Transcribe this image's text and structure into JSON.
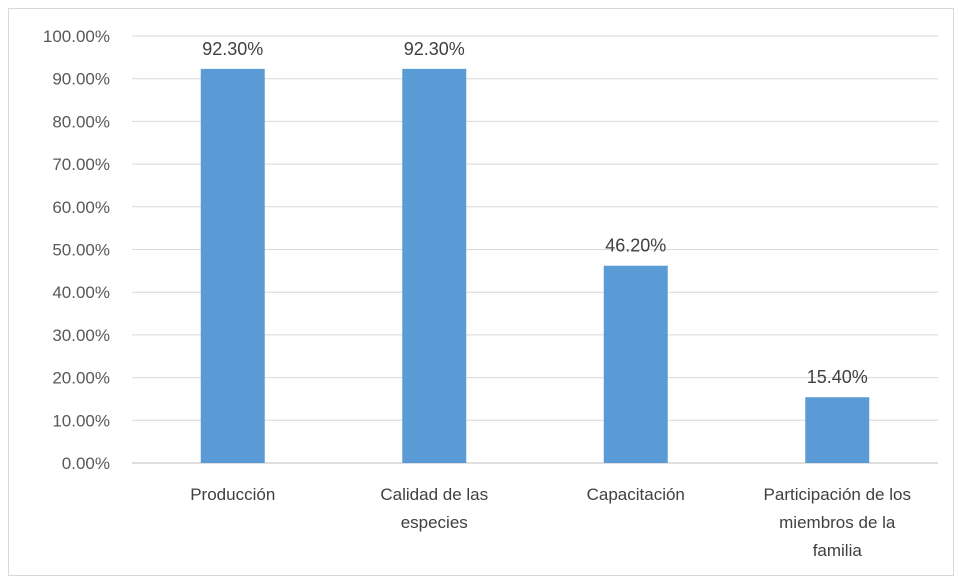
{
  "chart_data": {
    "type": "bar",
    "categories": [
      [
        "Producción"
      ],
      [
        "Calidad de las",
        "especies"
      ],
      [
        "Capacitación"
      ],
      [
        "Participación de los",
        "miembros de la",
        "familia"
      ]
    ],
    "values": [
      92.3,
      92.3,
      46.2,
      15.4
    ],
    "data_labels": [
      "92.30%",
      "92.30%",
      "46.20%",
      "15.40%"
    ],
    "ylim": [
      0,
      100
    ],
    "yticks": [
      0,
      10,
      20,
      30,
      40,
      50,
      60,
      70,
      80,
      90,
      100
    ],
    "ytick_labels": [
      "0.00%",
      "10.00%",
      "20.00%",
      "30.00%",
      "40.00%",
      "50.00%",
      "60.00%",
      "70.00%",
      "80.00%",
      "90.00%",
      "100.00%"
    ],
    "title": "",
    "xlabel": "",
    "ylabel": "",
    "grid": true,
    "legend": "none",
    "colors": {
      "bar": "#5b9bd5",
      "grid": "#d9d9d9",
      "axis": "#bfbfbf"
    }
  }
}
